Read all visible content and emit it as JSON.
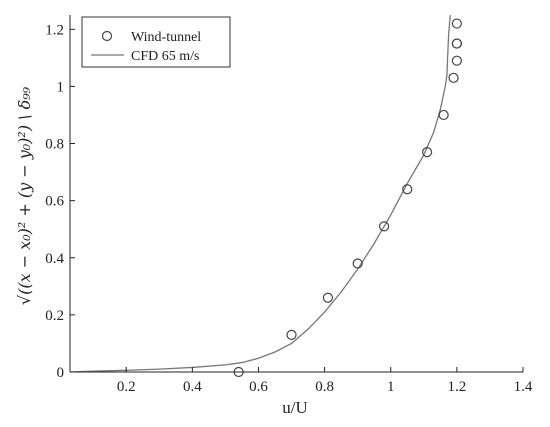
{
  "chart_data": {
    "type": "line",
    "title": "",
    "xlabel": "u/U",
    "ylabel": "√((x − x₀)² + (y − y₀)²) \\ δ₉₉",
    "xlim": [
      0.03,
      1.4
    ],
    "ylim": [
      0,
      1.25
    ],
    "x_ticks": [
      "0.2",
      "0.4",
      "0.6",
      "0.8",
      "1",
      "1.2",
      "1.4"
    ],
    "y_ticks": [
      "0",
      "0.2",
      "0.4",
      "0.6",
      "0.8",
      "1",
      "1.2"
    ],
    "x_tick_values": [
      0.2,
      0.4,
      0.6,
      0.8,
      1.0,
      1.2,
      1.4
    ],
    "y_tick_values": [
      0,
      0.2,
      0.4,
      0.6,
      0.8,
      1.0,
      1.2
    ],
    "grid": false,
    "legend_position": "top-left",
    "series": [
      {
        "name": "Wind-tunnel",
        "style": "marker-circle",
        "color": "#444444",
        "x": [
          0.54,
          0.7,
          0.81,
          0.9,
          0.98,
          1.05,
          1.11,
          1.16,
          1.19,
          1.2,
          1.2,
          1.2,
          1.2
        ],
        "y": [
          0.0,
          0.13,
          0.26,
          0.38,
          0.51,
          0.64,
          0.77,
          0.9,
          1.03,
          1.09,
          1.15,
          1.15,
          1.22
        ]
      },
      {
        "name": "CFD 65 m/s",
        "style": "line",
        "color": "#777777",
        "x": [
          0.03,
          0.1,
          0.2,
          0.3,
          0.4,
          0.5,
          0.55,
          0.6,
          0.65,
          0.7,
          0.75,
          0.8,
          0.85,
          0.9,
          0.95,
          1.0,
          1.05,
          1.1,
          1.13,
          1.15,
          1.165,
          1.17,
          1.172,
          1.175,
          1.18
        ],
        "y": [
          0.0,
          0.003,
          0.006,
          0.01,
          0.016,
          0.025,
          0.033,
          0.048,
          0.07,
          0.1,
          0.15,
          0.21,
          0.28,
          0.36,
          0.45,
          0.55,
          0.66,
          0.76,
          0.84,
          0.92,
          1.0,
          1.04,
          1.1,
          1.18,
          1.25
        ]
      }
    ]
  }
}
